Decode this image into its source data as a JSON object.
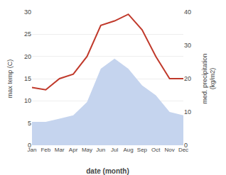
{
  "chart_data": {
    "type": "line",
    "xlabel": "date (month)",
    "ylabel": "max temp (C)",
    "y2label": "med. precipitation\n(kg/m2)",
    "categories": [
      "Jan",
      "Feb",
      "Mar",
      "Apr",
      "May",
      "Jun",
      "Jul",
      "Aug",
      "Sep",
      "Oct",
      "Nov",
      "Dec"
    ],
    "series": [
      {
        "type": "area",
        "axis": "y2",
        "color": "#c5d4ee",
        "values": [
          7,
          7,
          8,
          9,
          13,
          23,
          26,
          23,
          18,
          15,
          10,
          9
        ]
      },
      {
        "type": "line",
        "color": "#c0392b",
        "values": [
          13,
          12.5,
          15,
          16,
          20,
          27,
          28,
          29.5,
          26,
          20,
          15,
          15
        ]
      }
    ],
    "ylim": [
      0,
      30
    ],
    "yticks": [
      0,
      5,
      10,
      15,
      20,
      25,
      30
    ],
    "y2lim": [
      0,
      40
    ],
    "y2ticks": [
      0,
      10,
      20,
      30,
      40
    ],
    "grid": true
  }
}
